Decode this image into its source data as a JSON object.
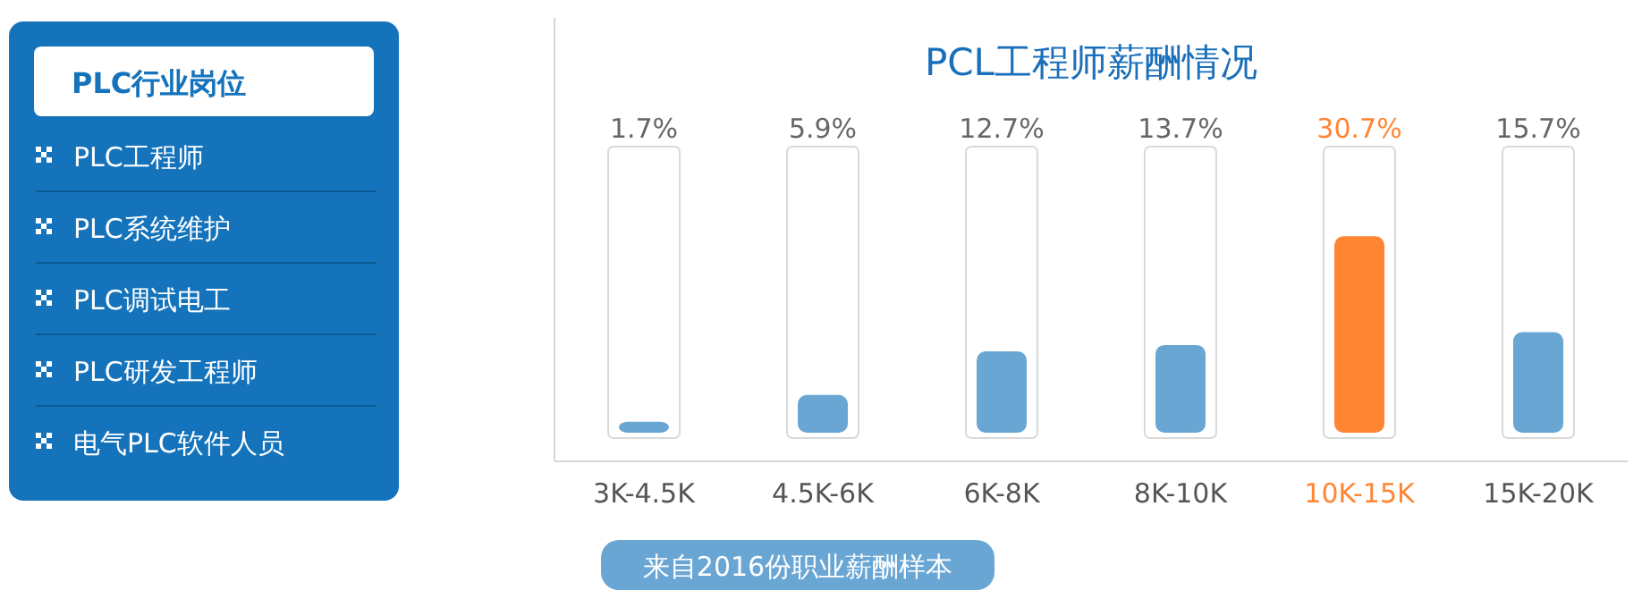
{
  "chart_data": [
    {
      "type": "other",
      "title": "PLC行业岗位",
      "annotations": [
        "PLC工程师",
        "PLC系统维护",
        "PLC调试电工",
        "PLC研发工程师",
        "电气PLC软件人员"
      ]
    },
    {
      "type": "bar",
      "title": "PCL工程师薪酬情况",
      "categories": [
        "3K-4.5K",
        "4.5K-6K",
        "6K-8K",
        "8K-10K",
        "10K-15K",
        "15K-20K"
      ],
      "values": [
        1.7,
        5.9,
        12.7,
        13.7,
        30.7,
        15.7
      ],
      "value_labels": [
        "1.7%",
        "5.9%",
        "12.7%",
        "13.7%",
        "30.7%",
        "15.7%"
      ],
      "colors": [
        "#6aa6d4",
        "#6aa6d4",
        "#6aa6d4",
        "#6aa6d4",
        "#ff8533",
        "#6aa6d4"
      ],
      "annotations": [
        "来自2016份职业薪酬样本"
      ]
    }
  ]
}
